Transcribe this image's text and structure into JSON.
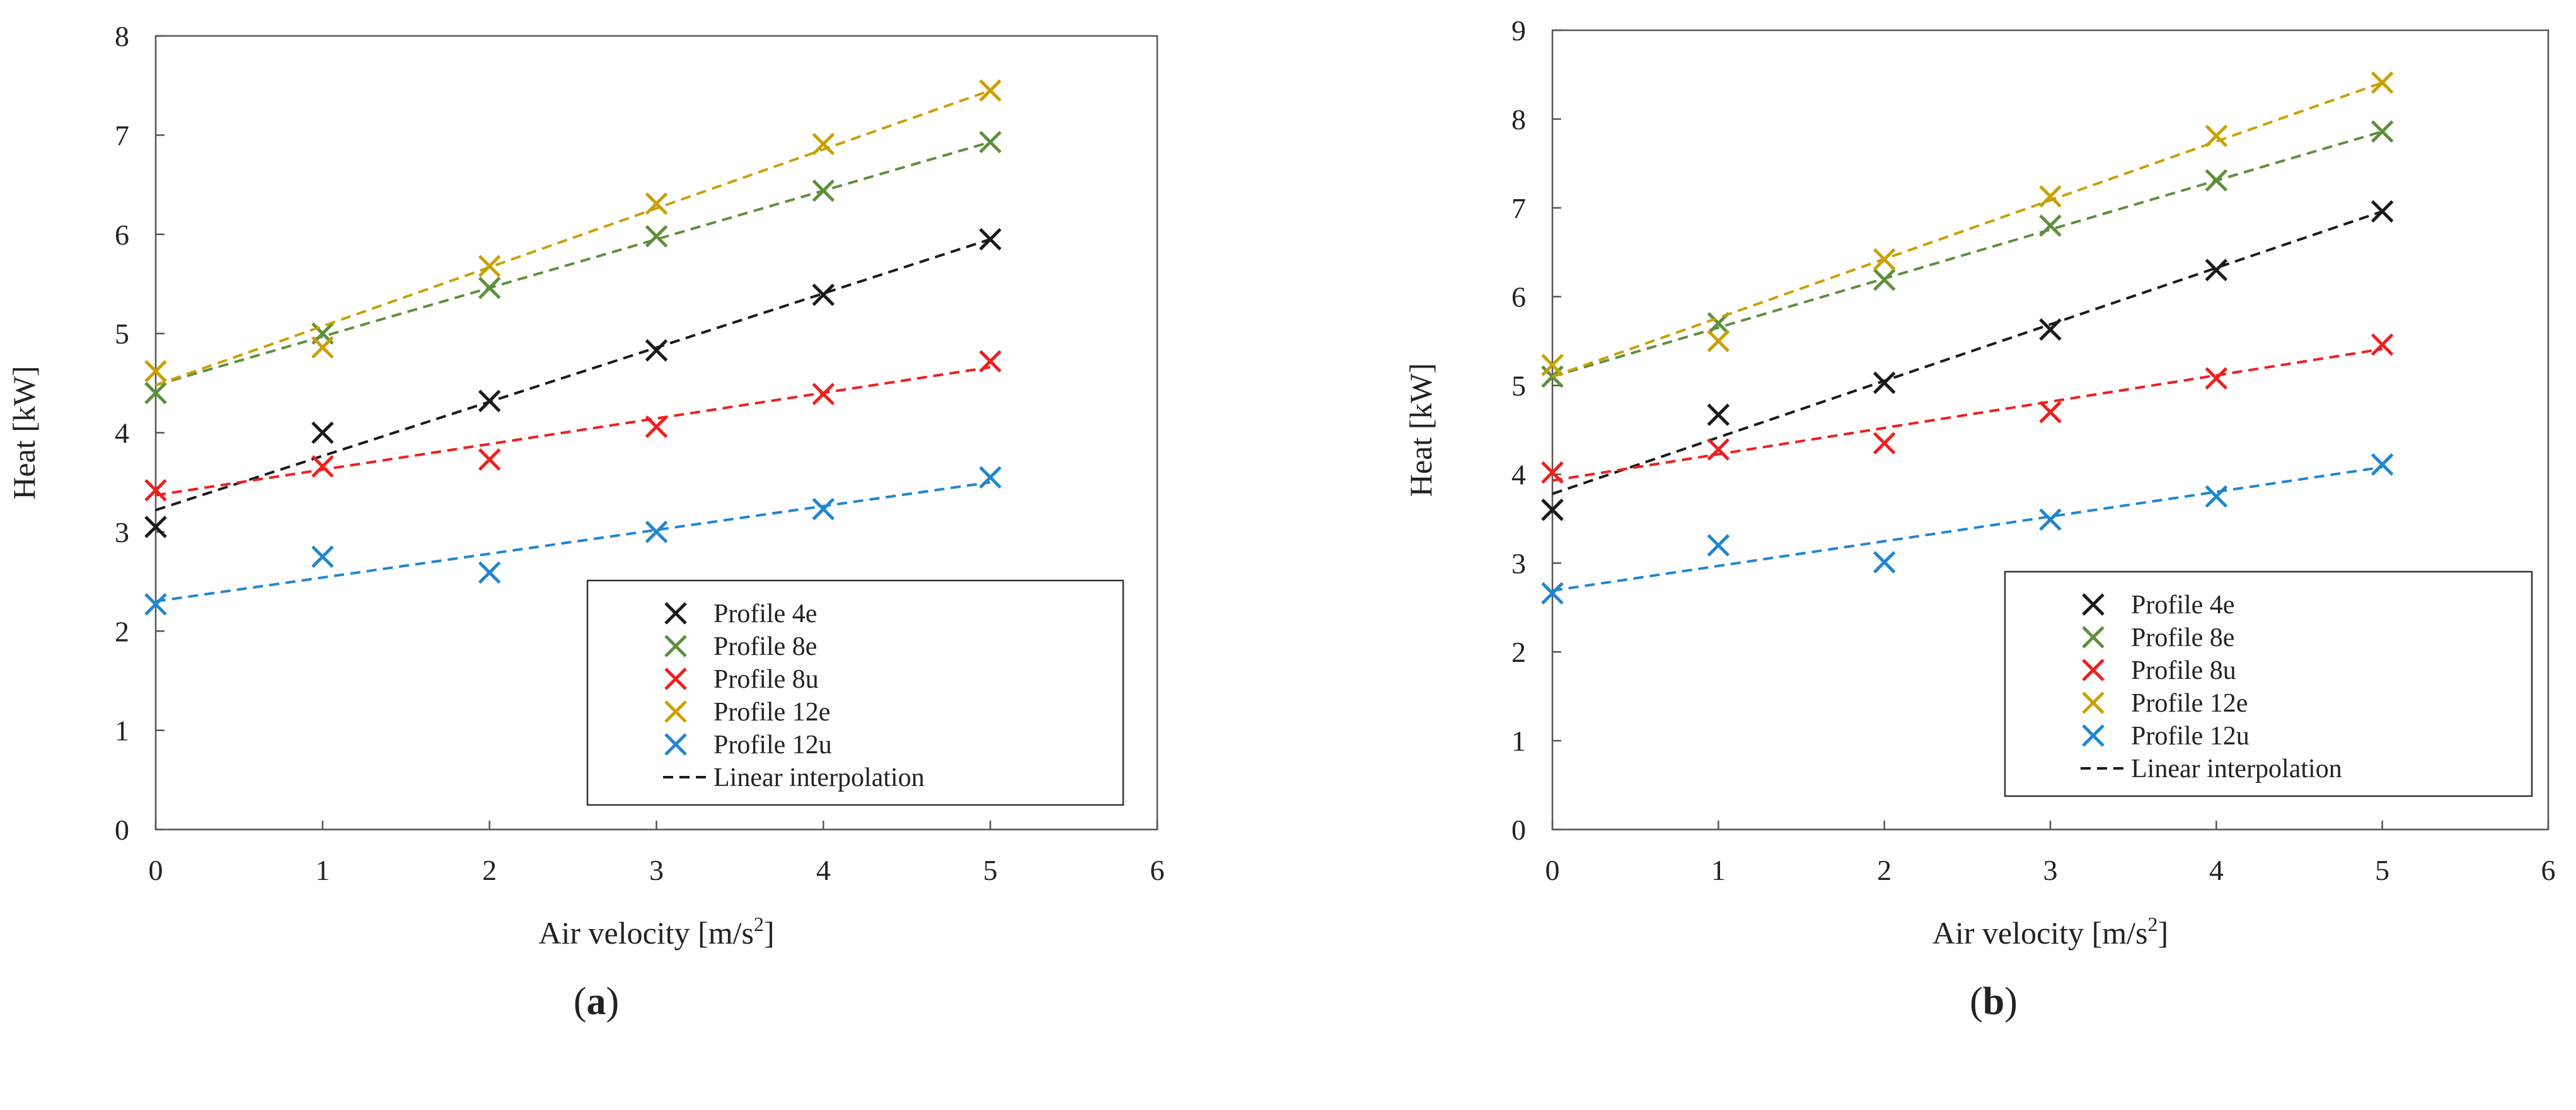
{
  "chart_data": [
    {
      "type": "scatter",
      "panel_label": "(a)",
      "xlabel": "Air velocity [m/s2]",
      "xlabel_main": "Air velocity [m/s",
      "xlabel_sup": "2",
      "xlabel_tail": "]",
      "ylabel": "Heat [kW]",
      "xlim": [
        0,
        6
      ],
      "ylim": [
        0,
        8
      ],
      "xticks": [
        "0",
        "1",
        "2",
        "3",
        "4",
        "5",
        "6"
      ],
      "yticks": [
        "0",
        "1",
        "2",
        "3",
        "4",
        "5",
        "6",
        "7",
        "8"
      ],
      "x": [
        0,
        1,
        2,
        3,
        4,
        5
      ],
      "grid": false,
      "legend_position": "bottom-right",
      "series": [
        {
          "name": "Profile 4e",
          "color": "#1a1a1a",
          "values": [
            3.05,
            4.0,
            4.32,
            4.83,
            5.39,
            5.95
          ],
          "fit": [
            3.22,
            5.95
          ]
        },
        {
          "name": "Profile 8e",
          "color": "#5e8f3c",
          "values": [
            4.4,
            5.0,
            5.46,
            5.98,
            6.44,
            6.93
          ],
          "fit": [
            4.48,
            6.93
          ]
        },
        {
          "name": "Profile 8u",
          "color": "#f21d1d",
          "values": [
            3.42,
            3.66,
            3.73,
            4.06,
            4.39,
            4.72
          ],
          "fit": [
            3.37,
            4.66
          ]
        },
        {
          "name": "Profile 12e",
          "color": "#c9a000",
          "values": [
            4.62,
            4.86,
            5.68,
            6.31,
            6.91,
            7.45
          ],
          "fit": [
            4.48,
            7.45
          ]
        },
        {
          "name": "Profile 12u",
          "color": "#1f86cf",
          "values": [
            2.27,
            2.75,
            2.59,
            3.0,
            3.23,
            3.55
          ],
          "fit": [
            2.3,
            3.5
          ]
        }
      ],
      "legend_line_label": "Linear interpolation"
    },
    {
      "type": "scatter",
      "panel_label": "(b)",
      "xlabel": "Air velocity [m/s2]",
      "xlabel_main": "Air velocity [m/s",
      "xlabel_sup": "2",
      "xlabel_tail": "]",
      "ylabel": "Heat [kW]",
      "xlim": [
        0,
        6
      ],
      "ylim": [
        0,
        9
      ],
      "xticks": [
        "0",
        "1",
        "2",
        "3",
        "4",
        "5",
        "6"
      ],
      "yticks": [
        "0",
        "1",
        "2",
        "3",
        "4",
        "5",
        "6",
        "7",
        "8",
        "9"
      ],
      "x": [
        0,
        1,
        2,
        3,
        4,
        5
      ],
      "grid": false,
      "legend_position": "bottom-right",
      "series": [
        {
          "name": "Profile 4e",
          "color": "#1a1a1a",
          "values": [
            3.6,
            4.67,
            5.03,
            5.63,
            6.3,
            6.96
          ],
          "fit": [
            3.78,
            6.96
          ]
        },
        {
          "name": "Profile 8e",
          "color": "#5e8f3c",
          "values": [
            5.1,
            5.7,
            6.19,
            6.8,
            7.31,
            7.86
          ],
          "fit": [
            5.1,
            7.86
          ]
        },
        {
          "name": "Profile 8u",
          "color": "#f21d1d",
          "values": [
            4.02,
            4.28,
            4.35,
            4.7,
            5.08,
            5.46
          ],
          "fit": [
            3.93,
            5.41
          ]
        },
        {
          "name": "Profile 12e",
          "color": "#c9a000",
          "values": [
            5.23,
            5.5,
            6.42,
            7.13,
            7.81,
            8.41
          ],
          "fit": [
            5.1,
            8.41
          ]
        },
        {
          "name": "Profile 12u",
          "color": "#1f86cf",
          "values": [
            2.66,
            3.2,
            3.01,
            3.49,
            3.75,
            4.11
          ],
          "fit": [
            2.69,
            4.08
          ]
        }
      ],
      "legend_line_label": "Linear interpolation"
    }
  ]
}
